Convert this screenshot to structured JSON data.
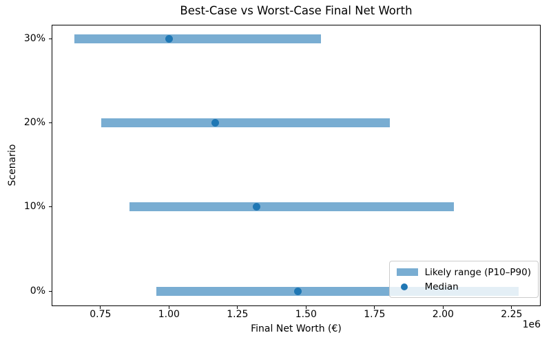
{
  "chart_data": {
    "type": "bar",
    "orientation": "horizontal",
    "title": "Best-Case vs Worst-Case Final Net Worth",
    "xlabel": "Final Net Worth (€)",
    "ylabel": "Scenario",
    "x_scale_offset_label": "1e6",
    "categories": [
      "0%",
      "10%",
      "20%",
      "30%"
    ],
    "categories_order": "bottom-to-top",
    "series": [
      {
        "name": "Likely range (P10–P90)",
        "kind": "range",
        "p10": [
          955000,
          855000,
          753000,
          655000
        ],
        "p90": [
          2275000,
          2040000,
          1805000,
          1555000
        ]
      },
      {
        "name": "Median",
        "kind": "point",
        "values": [
          1470000,
          1320000,
          1170000,
          1000000
        ]
      }
    ],
    "xticks": {
      "values": [
        750000,
        1000000,
        1250000,
        1500000,
        1750000,
        2000000,
        2250000
      ],
      "labels": [
        "0.75",
        "1.00",
        "1.25",
        "1.50",
        "1.75",
        "2.00",
        "2.25"
      ]
    },
    "xlim": [
      572000,
      2356000
    ],
    "ylim": [
      -0.18,
      3.17
    ],
    "grid": false,
    "legend": {
      "position": "lower right",
      "entries": [
        {
          "label": "Likely range (P10–P90)",
          "marker": "bar"
        },
        {
          "label": "Median",
          "marker": "dot"
        }
      ]
    },
    "colors": {
      "series_blue": "#1f77b4",
      "range_bar_opacity": 0.6,
      "legend_border": "#cccccc",
      "axis": "#000000",
      "background": "#ffffff"
    }
  }
}
